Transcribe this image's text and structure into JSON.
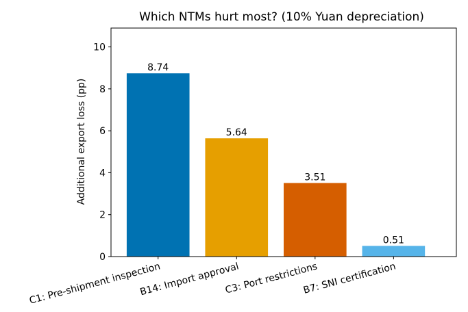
{
  "chart_data": {
    "type": "bar",
    "title": "Which NTMs hurt most? (10% Yuan depreciation)",
    "xlabel": "",
    "ylabel": "Additional export loss (pp)",
    "categories": [
      "C1: Pre-shipment inspection",
      "B14: Import approval",
      "C3: Port restrictions",
      "B7: SNI certification"
    ],
    "values": [
      8.74,
      5.64,
      3.51,
      0.51
    ],
    "value_labels": [
      "8.74",
      "5.64",
      "3.51",
      "0.51"
    ],
    "colors": [
      "#0072b2",
      "#e69f00",
      "#d55e00",
      "#56b4e9"
    ],
    "ylim": [
      0,
      10.9
    ],
    "yticks": [
      0,
      2,
      4,
      6,
      8,
      10
    ],
    "grid": false,
    "legend": "none"
  }
}
